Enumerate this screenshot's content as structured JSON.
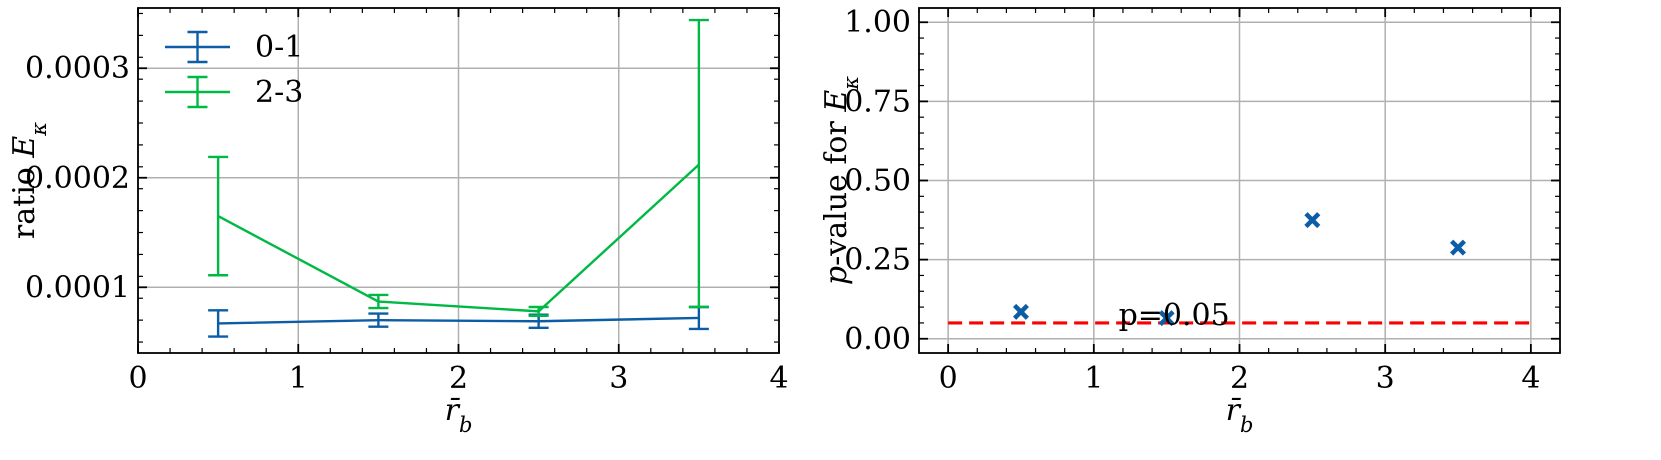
{
  "chart_data": [
    {
      "type": "line",
      "errorbars": true,
      "xlabel": "r̄_b",
      "ylabel": "ratio E_κ",
      "xlim": [
        0,
        4
      ],
      "ylim": [
        4e-05,
        0.000355
      ],
      "xticks": [
        0,
        1,
        2,
        3,
        4
      ],
      "xtick_labels": [
        "0",
        "1",
        "2",
        "3",
        "4"
      ],
      "yticks": [
        0.0001,
        0.0002,
        0.0003
      ],
      "ytick_labels": [
        "0.0001",
        "0.0002",
        "0.0003"
      ],
      "grid": true,
      "legend_position": "top-left",
      "series": [
        {
          "name": "0-1",
          "color": "#0C5DA5",
          "x": [
            0.5,
            1.5,
            2.5,
            3.5
          ],
          "y": [
            6.7e-05,
            7e-05,
            6.9e-05,
            7.2e-05
          ],
          "err_low": [
            5.5e-05,
            6.4e-05,
            6.3e-05,
            6.2e-05
          ],
          "err_high": [
            7.9e-05,
            7.6e-05,
            7.5e-05,
            8.2e-05
          ]
        },
        {
          "name": "2-3",
          "color": "#00B945",
          "x": [
            0.5,
            1.5,
            2.5,
            3.5
          ],
          "y": [
            0.000165,
            8.7e-05,
            7.8e-05,
            0.000212
          ],
          "err_low": [
            0.000111,
            8.1e-05,
            7.4e-05,
            8.2e-05
          ],
          "err_high": [
            0.000219,
            9.3e-05,
            8.2e-05,
            0.000344
          ]
        }
      ]
    },
    {
      "type": "scatter",
      "xlabel": "r̄_b",
      "ylabel": "p-value for E_κ",
      "xlim": [
        -0.2,
        4.2
      ],
      "ylim": [
        -0.045,
        1.045
      ],
      "xticks": [
        0,
        1,
        2,
        3,
        4
      ],
      "xtick_labels": [
        "0",
        "1",
        "2",
        "3",
        "4"
      ],
      "yticks": [
        0,
        0.25,
        0.5,
        0.75,
        1.0
      ],
      "ytick_labels": [
        "0.00",
        "0.25",
        "0.50",
        "0.75",
        "1.00"
      ],
      "grid": true,
      "series": [
        {
          "color": "#0C5DA5",
          "marker": "x-filled",
          "x": [
            0.5,
            1.5,
            2.5,
            3.5
          ],
          "y": [
            0.085,
            0.065,
            0.375,
            0.288
          ]
        }
      ],
      "reference_line": {
        "y": 0.05,
        "color": "#FF0000",
        "style": "dashed",
        "x_from": 0,
        "x_to": 4
      },
      "annotation": {
        "text": "p=0.05",
        "x": 1.17,
        "y": 0.05
      }
    }
  ]
}
